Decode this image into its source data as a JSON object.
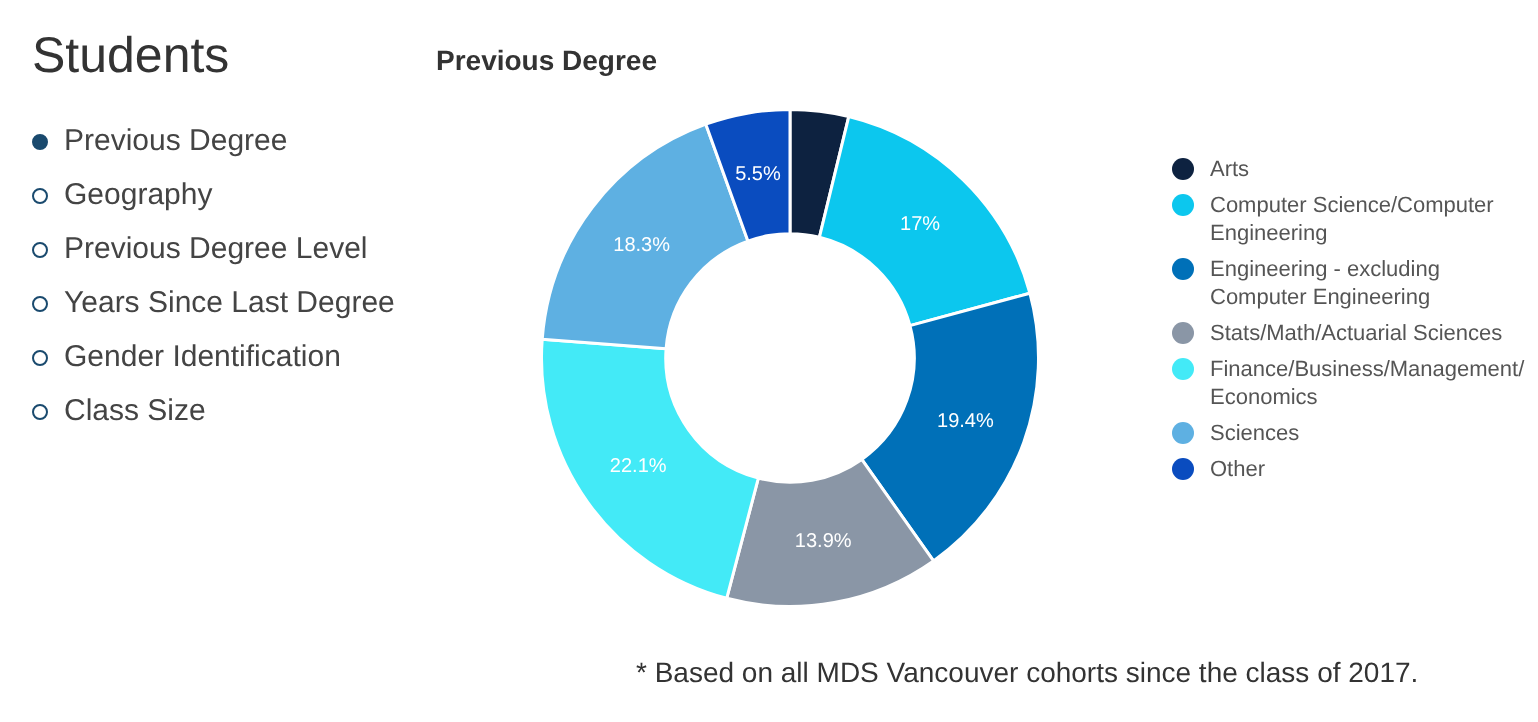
{
  "chart_data": [
    {
      "type": "other",
      "title": "Students",
      "annotations": [
        "Previous Degree",
        "Geography",
        "Previous Degree Level",
        "Years Since Last Degree",
        "Gender Identification",
        "Class Size"
      ]
    },
    {
      "type": "donut",
      "title": "Previous Degree",
      "categories": [
        "Arts",
        "Computer Science/Computer Engineering",
        "Engineering - excluding Computer Engineering",
        "Stats/Math/Actuarial Sciences",
        "Finance/Business/Management/ Economics",
        "Sciences",
        "Other"
      ],
      "values": [
        3.8,
        17,
        19.4,
        13.9,
        22.1,
        18.3,
        5.5
      ],
      "colors": [
        "#0d2240",
        "#0cc7ee",
        "#0070b8",
        "#8a96a6",
        "#43eaf7",
        "#5eb0e2",
        "#0a4cbf"
      ],
      "value_labels": [
        null,
        "17%",
        "19.4%",
        "13.9%",
        "22.1%",
        "18.3%",
        "5.5%"
      ],
      "legend": "right",
      "annotations": [
        "* Based on all MDS Vancouver cohorts since the class of 2017."
      ]
    }
  ]
}
